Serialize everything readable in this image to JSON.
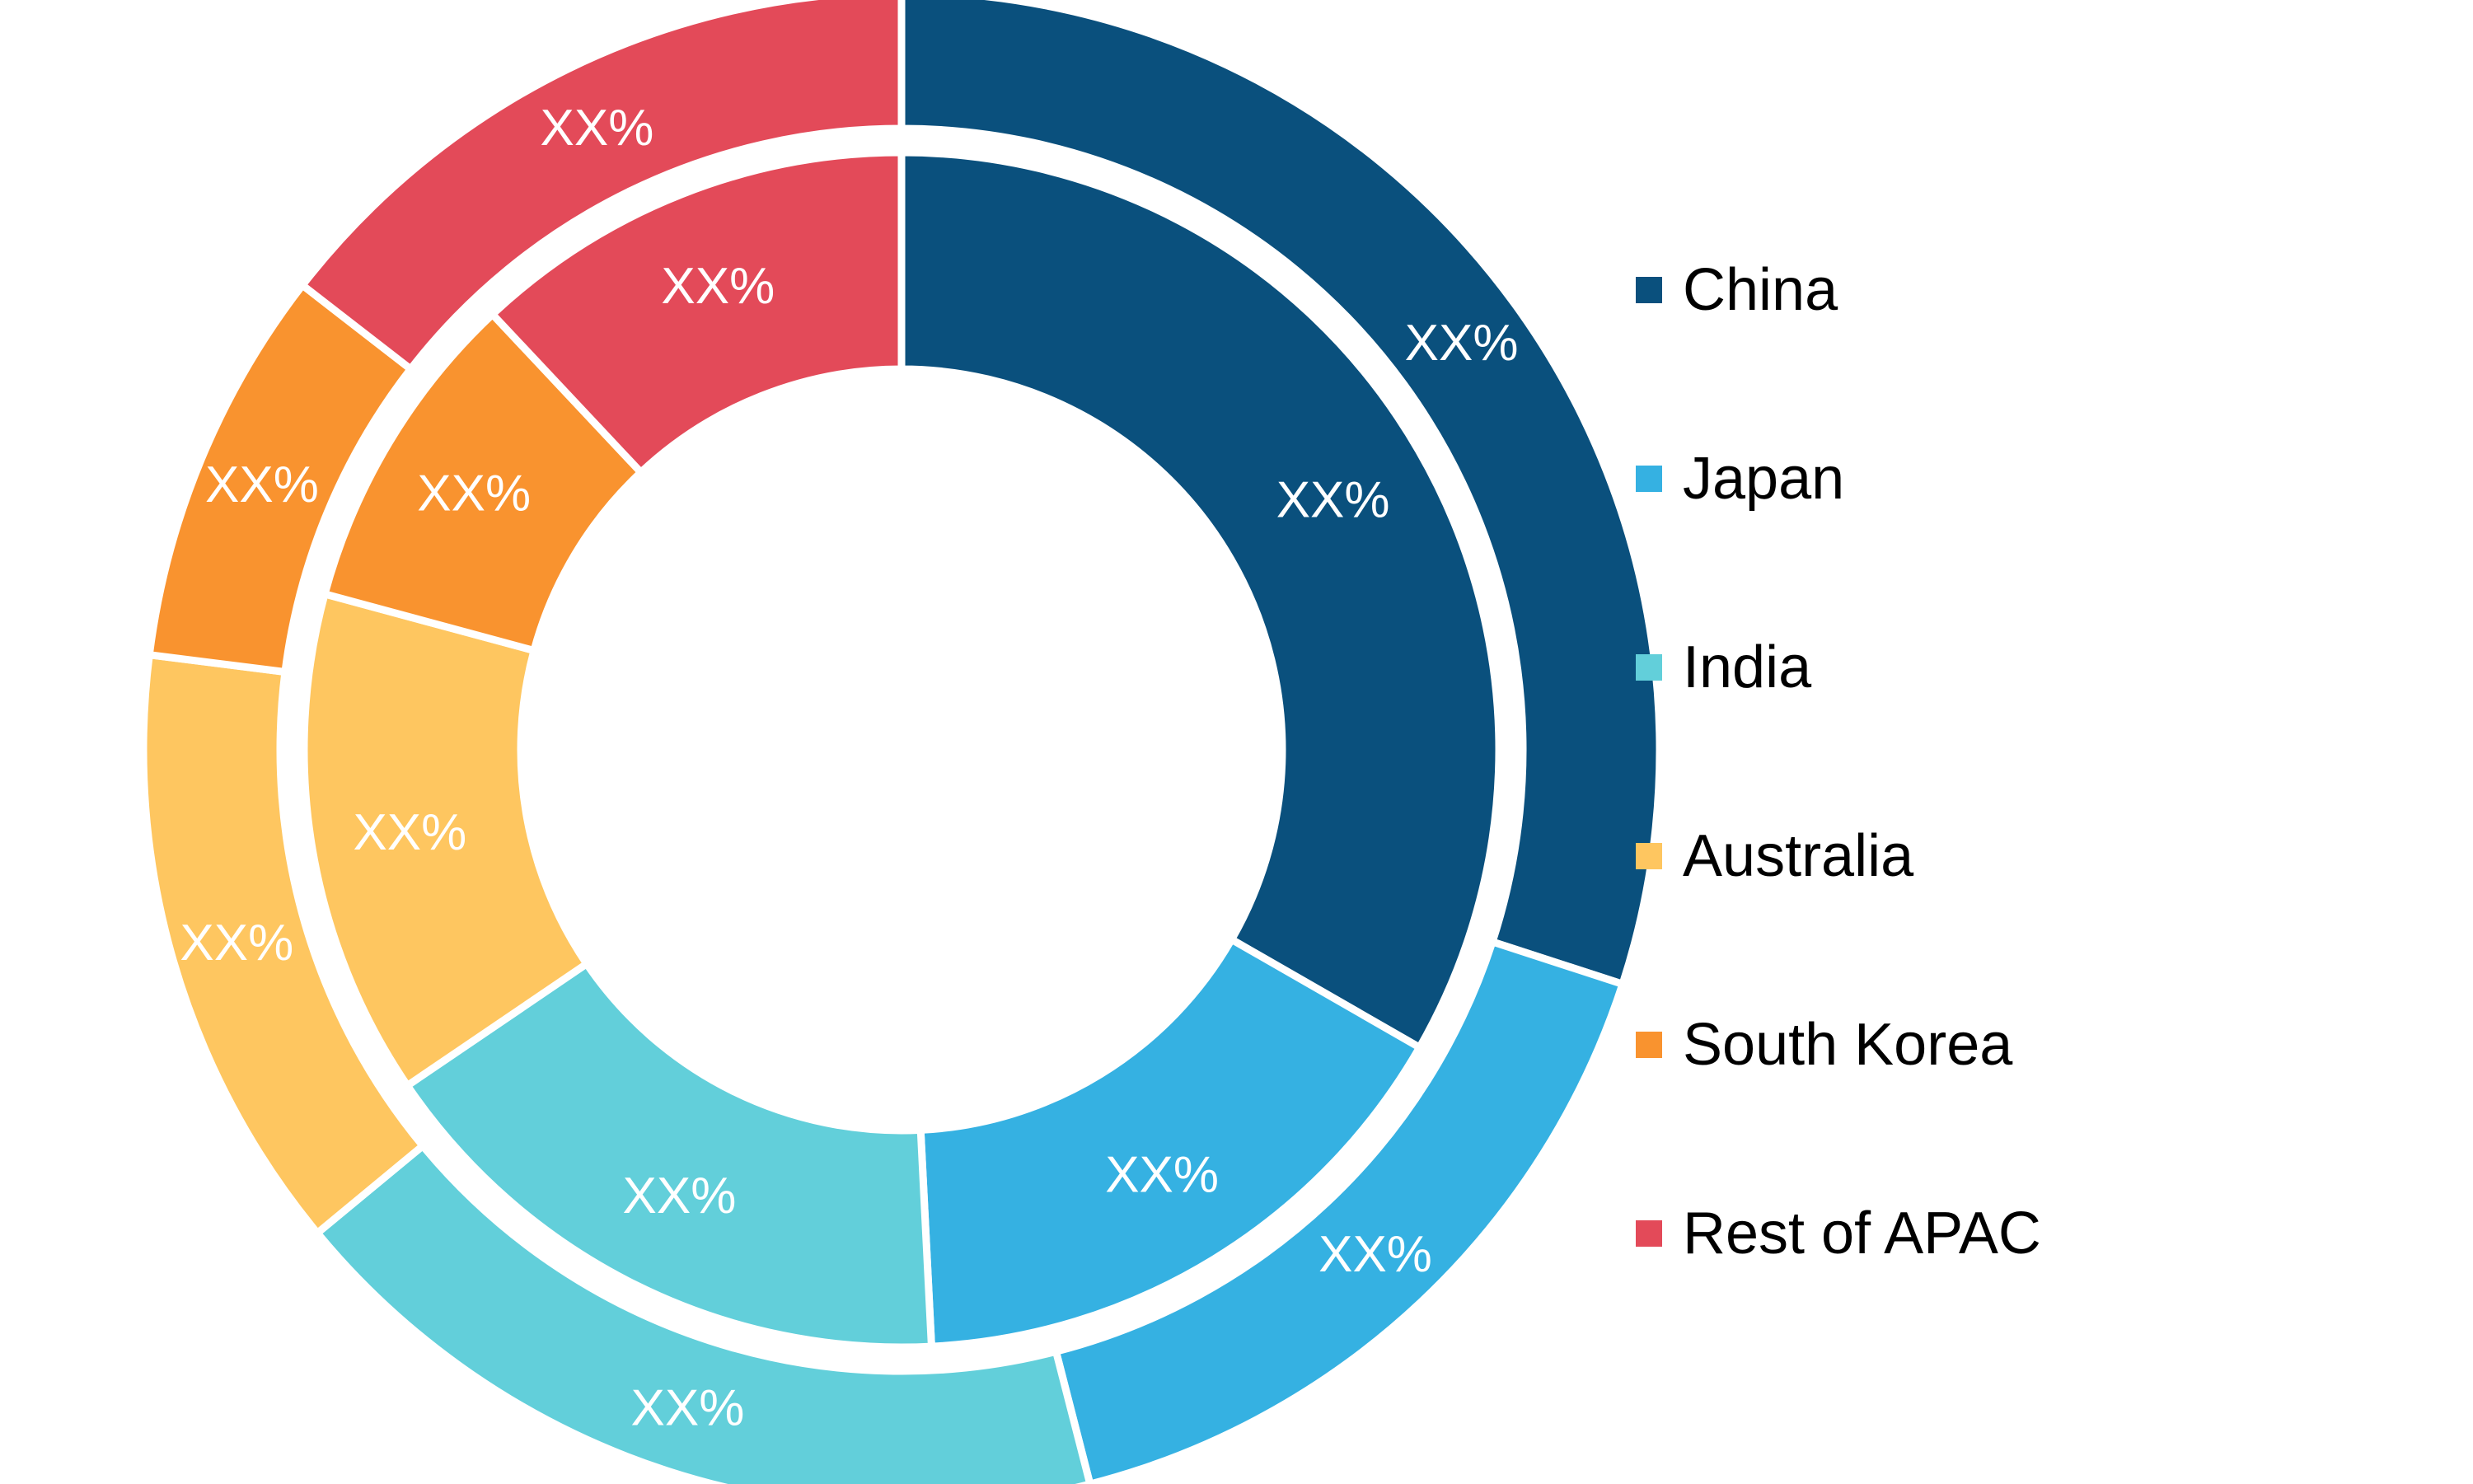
{
  "chart_data": {
    "type": "pie",
    "variant": "nested-donut",
    "legend_position": "right",
    "categories": [
      "China",
      "Japan",
      "India",
      "Australia",
      "South Korea",
      "Rest of APAC"
    ],
    "colors": [
      "#0a507d",
      "#35b1e2",
      "#62cfda",
      "#fec660",
      "#f9932f",
      "#e34a59"
    ],
    "series": [
      {
        "ring": "outer",
        "values": [
          30,
          16,
          18,
          13,
          8.5,
          14.5
        ],
        "labels": [
          "XX%",
          "XX%",
          "XX%",
          "XX%",
          "XX%",
          "XX%"
        ]
      },
      {
        "ring": "inner",
        "values": [
          33.3,
          15.9,
          16.3,
          13.7,
          8.8,
          12.0
        ],
        "labels": [
          "XX%",
          "XX%",
          "XX%",
          "XX%",
          "XX%",
          "XX%"
        ]
      }
    ]
  }
}
